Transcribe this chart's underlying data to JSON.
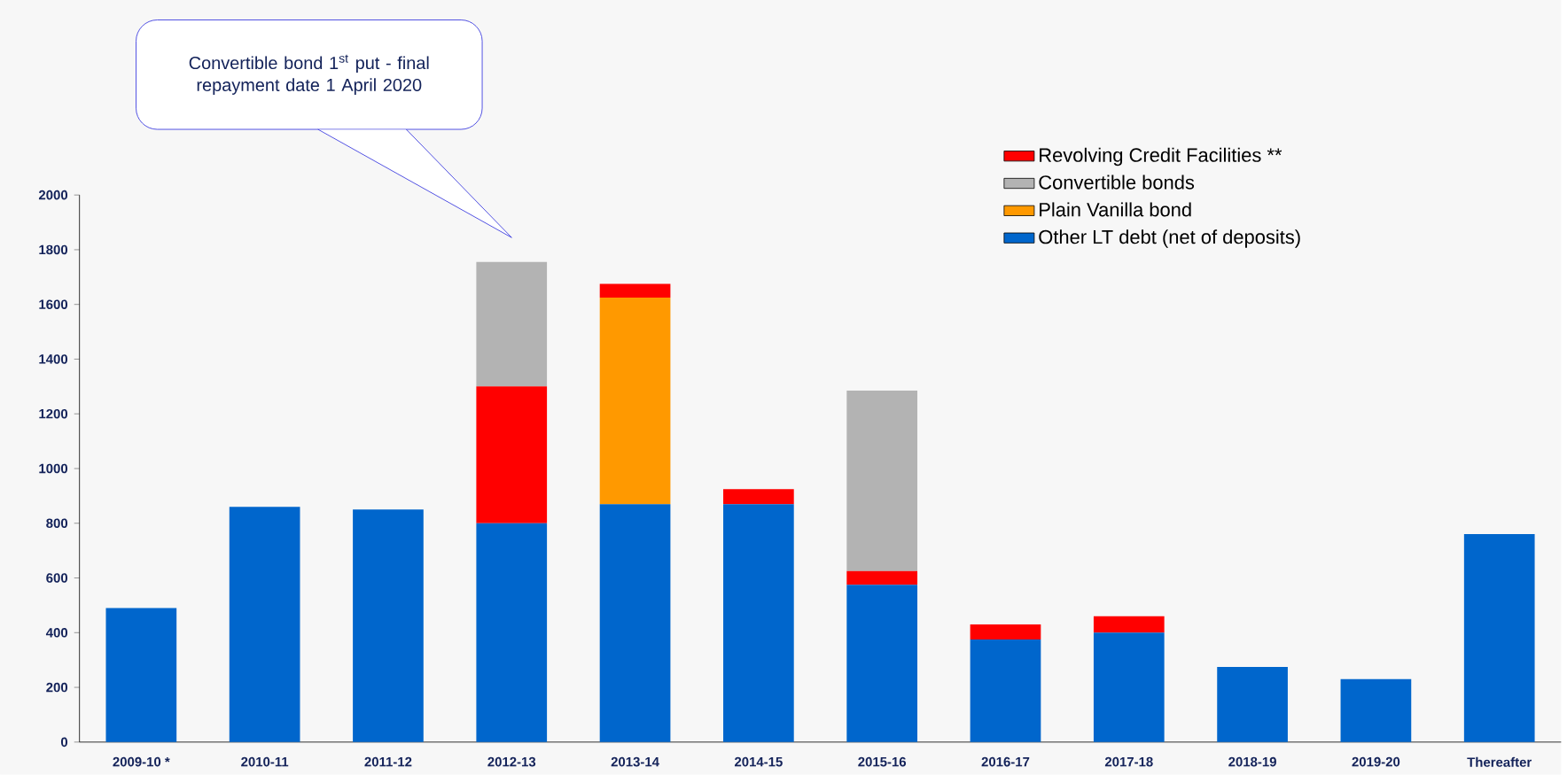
{
  "chart_data": {
    "type": "bar",
    "stacked": true,
    "categories": [
      "2009-10 *",
      "2010-11",
      "2011-12",
      "2012-13",
      "2013-14",
      "2014-15",
      "2015-16",
      "2016-17",
      "2017-18",
      "2018-19",
      "2019-20",
      "Thereafter"
    ],
    "series": [
      {
        "name": "Other LT debt (net of deposits)",
        "color": "#0066cc",
        "values": [
          490,
          860,
          850,
          800,
          870,
          870,
          575,
          375,
          400,
          275,
          230,
          760
        ]
      },
      {
        "name": "Plain Vanilla bond",
        "color": "#ff9900",
        "values": [
          0,
          0,
          0,
          0,
          755,
          0,
          0,
          0,
          0,
          0,
          0,
          0
        ]
      },
      {
        "name": "Revolving Credit Facilities **",
        "color": "#ff0000",
        "values": [
          0,
          0,
          0,
          500,
          50,
          55,
          50,
          55,
          60,
          0,
          0,
          0
        ]
      },
      {
        "name": "Convertible bonds",
        "color": "#b3b3b3",
        "values": [
          0,
          0,
          0,
          455,
          0,
          0,
          660,
          0,
          0,
          0,
          0,
          0
        ]
      }
    ],
    "ylim": [
      0,
      2000
    ],
    "yticks": [
      0,
      200,
      400,
      600,
      800,
      1000,
      1200,
      1400,
      1600,
      1800,
      2000
    ],
    "legend": "top right",
    "annotations": [
      "Convertible bond 1$^{st}$ put - final repayment date 1 April 2020"
    ]
  }
}
